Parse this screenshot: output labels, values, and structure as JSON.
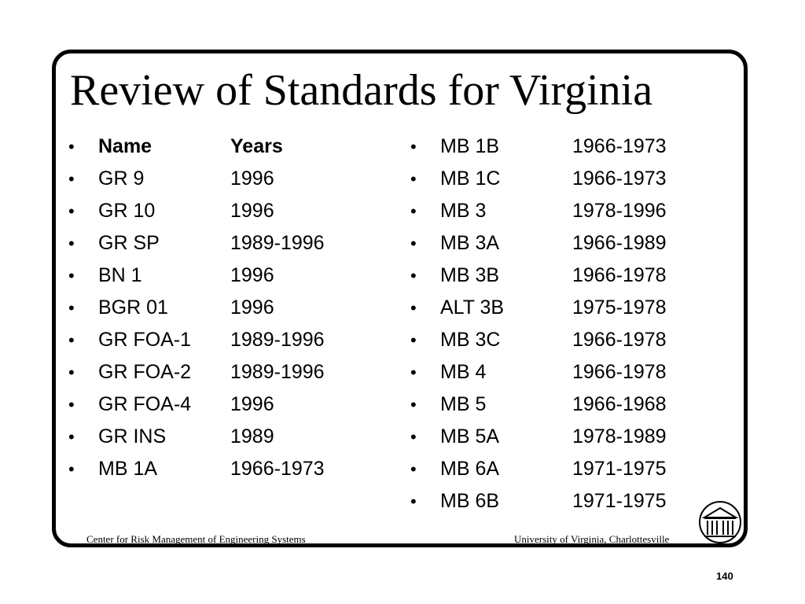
{
  "title": "Review of Standards for Virginia",
  "left_column": {
    "header": {
      "bullet": "•",
      "name": "Name",
      "years": "Years"
    },
    "rows": [
      {
        "bullet": "•",
        "name": "GR 9",
        "years": "1996"
      },
      {
        "bullet": "•",
        "name": "GR 10",
        "years": "1996"
      },
      {
        "bullet": "•",
        "name": "GR SP",
        "years": "1989-1996"
      },
      {
        "bullet": "•",
        "name": "BN 1",
        "years": "1996"
      },
      {
        "bullet": "•",
        "name": "BGR 01",
        "years": "1996"
      },
      {
        "bullet": "•",
        "name": "GR FOA-1",
        "years": "1989-1996"
      },
      {
        "bullet": "•",
        "name": "GR FOA-2",
        "years": "1989-1996"
      },
      {
        "bullet": "•",
        "name": "GR FOA-4",
        "years": "1996"
      },
      {
        "bullet": "•",
        "name": "GR INS",
        "years": "1989"
      },
      {
        "bullet": "•",
        "name": "MB 1A",
        "years": "1966-1973"
      }
    ]
  },
  "right_column": {
    "rows": [
      {
        "bullet": "•",
        "name": "MB 1B",
        "years": "1966-1973"
      },
      {
        "bullet": "•",
        "name": "MB 1C",
        "years": "1966-1973"
      },
      {
        "bullet": "•",
        "name": "MB 3",
        "years": "1978-1996"
      },
      {
        "bullet": "•",
        "name": "MB 3A",
        "years": "1966-1989"
      },
      {
        "bullet": "•",
        "name": "MB 3B",
        "years": "1966-1978"
      },
      {
        "bullet": "•",
        "name": "ALT 3B",
        "years": "1975-1978"
      },
      {
        "bullet": "•",
        "name": "MB 3C",
        "years": "1966-1978"
      },
      {
        "bullet": "•",
        "name": "MB 4",
        "years": "1966-1978"
      },
      {
        "bullet": "•",
        "name": "MB 5",
        "years": "1966-1968"
      },
      {
        "bullet": "•",
        "name": "MB 5A",
        "years": "1978-1989"
      },
      {
        "bullet": "•",
        "name": "MB 6A",
        "years": "1971-1975"
      },
      {
        "bullet": "•",
        "name": "MB 6B",
        "years": "1971-1975"
      }
    ]
  },
  "footer": {
    "left": "Center for Risk Management of Engineering Systems",
    "right": "University of Virginia, Charlottesville"
  },
  "logo_icon": "rotunda-logo-icon",
  "page_number": "140",
  "colors": {
    "text": "#000000",
    "background": "#ffffff",
    "frame": "#000000"
  }
}
